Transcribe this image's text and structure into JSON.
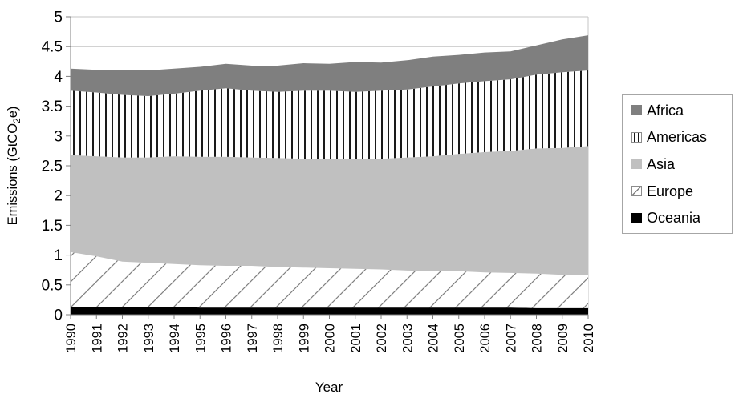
{
  "chart_data": {
    "type": "area",
    "stacked": true,
    "title": "",
    "xlabel": "Year",
    "ylabel": "Emissions (GtCO2e)",
    "ylabel_parts": {
      "pre": "Emissions (GtCO",
      "sub": "2",
      "post": "e)"
    },
    "x": [
      "1990",
      "1991",
      "1992",
      "1993",
      "1994",
      "1995",
      "1996",
      "1997",
      "1998",
      "1999",
      "2000",
      "2001",
      "2002",
      "2003",
      "2004",
      "2005",
      "2006",
      "2007",
      "2008",
      "2009",
      "2010"
    ],
    "yticks": [
      "0",
      "0.5",
      "1",
      "1.5",
      "2",
      "2.5",
      "3",
      "3.5",
      "4",
      "4.5",
      "5"
    ],
    "ylim": [
      0,
      5
    ],
    "grid": "horizontal",
    "legend_position": "right",
    "stack_order_bottom_to_top": [
      "Oceania",
      "Europe",
      "Asia",
      "Americas",
      "Africa"
    ],
    "series": [
      {
        "name": "Africa",
        "fill": "solid",
        "color": "#7f7f7f",
        "values": [
          0.37,
          0.38,
          0.41,
          0.43,
          0.42,
          0.4,
          0.41,
          0.42,
          0.44,
          0.46,
          0.45,
          0.5,
          0.47,
          0.49,
          0.5,
          0.48,
          0.48,
          0.47,
          0.49,
          0.55,
          0.59
        ]
      },
      {
        "name": "Americas",
        "fill": "vertical-stripes",
        "color": "#ffffff",
        "pattern_color": "#1a1a1a",
        "values": [
          1.08,
          1.07,
          1.05,
          1.03,
          1.05,
          1.11,
          1.15,
          1.12,
          1.11,
          1.14,
          1.15,
          1.13,
          1.14,
          1.14,
          1.17,
          1.18,
          1.19,
          1.2,
          1.24,
          1.27,
          1.27
        ]
      },
      {
        "name": "Asia",
        "fill": "solid",
        "color": "#c0c0c0",
        "values": [
          1.63,
          1.68,
          1.75,
          1.77,
          1.81,
          1.82,
          1.83,
          1.82,
          1.83,
          1.83,
          1.83,
          1.84,
          1.86,
          1.9,
          1.93,
          1.97,
          2.02,
          2.05,
          2.1,
          2.13,
          2.16
        ]
      },
      {
        "name": "Europe",
        "fill": "diagonal-hatch",
        "color": "#ffffff",
        "pattern_color": "#808080",
        "values": [
          0.92,
          0.85,
          0.76,
          0.74,
          0.72,
          0.71,
          0.7,
          0.7,
          0.68,
          0.67,
          0.66,
          0.65,
          0.64,
          0.62,
          0.61,
          0.61,
          0.59,
          0.58,
          0.58,
          0.56,
          0.56
        ]
      },
      {
        "name": "Oceania",
        "fill": "solid",
        "color": "#000000",
        "values": [
          0.13,
          0.13,
          0.13,
          0.13,
          0.13,
          0.12,
          0.12,
          0.12,
          0.12,
          0.12,
          0.12,
          0.12,
          0.12,
          0.12,
          0.12,
          0.12,
          0.12,
          0.12,
          0.11,
          0.11,
          0.11
        ]
      }
    ],
    "colors": {
      "gridline": "#c4c4c4",
      "axis": "#808080",
      "text": "#000000"
    }
  }
}
